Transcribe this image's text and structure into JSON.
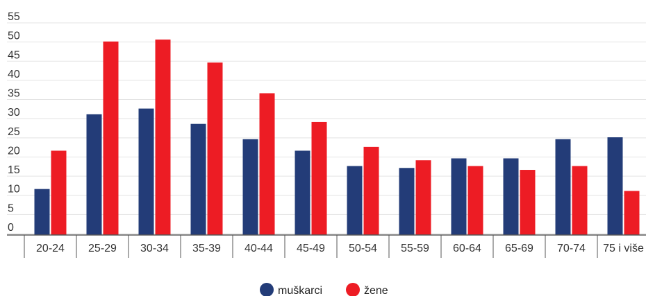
{
  "chart_data": {
    "type": "bar",
    "categories": [
      "20-24",
      "25-29",
      "30-34",
      "35-39",
      "40-44",
      "45-49",
      "50-54",
      "55-59",
      "60-64",
      "65-69",
      "70-74",
      "75 i više"
    ],
    "series": [
      {
        "name": "muškarci",
        "color": "#233c78",
        "values": [
          8,
          27.5,
          29,
          25,
          21,
          18,
          14,
          13.5,
          16,
          16,
          21,
          21.5
        ]
      },
      {
        "name": "žene",
        "color": "#ed1c24",
        "values": [
          18,
          46.5,
          47,
          41,
          33,
          25.5,
          19,
          15.5,
          14,
          13,
          14,
          7.5
        ]
      }
    ],
    "yticks": [
      0,
      5,
      10,
      15,
      20,
      25,
      30,
      35,
      40,
      45,
      50,
      55
    ],
    "ylim": [
      -4,
      56
    ],
    "grid": true,
    "legend_position": "bottom-center"
  }
}
